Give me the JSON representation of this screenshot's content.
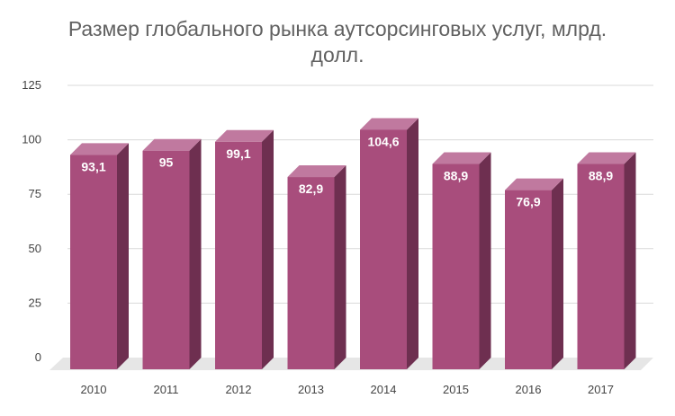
{
  "chart_data": {
    "type": "bar",
    "title_lines": [
      "Размер глобального рынка аутсорсинговых услуг, млрд.",
      "долл."
    ],
    "categories": [
      "2010",
      "2011",
      "2012",
      "2013",
      "2014",
      "2015",
      "2016",
      "2017"
    ],
    "values": [
      93.1,
      95,
      99.1,
      82.9,
      104.6,
      88.9,
      76.9,
      88.9
    ],
    "value_labels": [
      "93,1",
      "95",
      "99,1",
      "82,9",
      "104,6",
      "88,9",
      "76,9",
      "88,9"
    ],
    "y_ticks": [
      0,
      25,
      50,
      75,
      100,
      125
    ],
    "ylim": [
      0,
      125
    ],
    "xlabel": "",
    "ylabel": "",
    "grid": true,
    "legend": "none",
    "style": "3d-column",
    "colors": {
      "bar_front": "#a84d7c",
      "bar_top": "#c0799f",
      "bar_side": "#6e2f50",
      "floor": "#e6e6e6",
      "gridline": "#d9d9d9"
    }
  }
}
